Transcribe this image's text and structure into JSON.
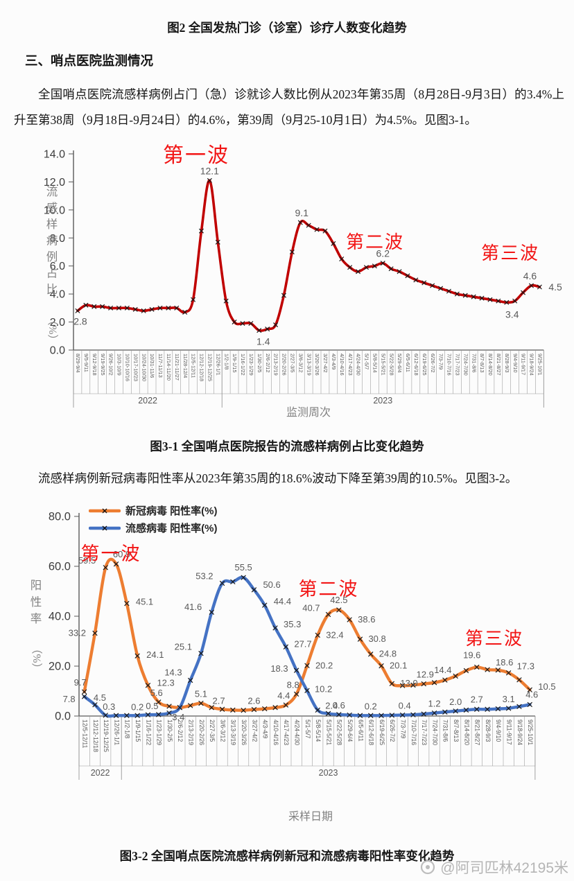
{
  "page": {
    "fig2_caption": "图2 全国发热门诊（诊室）诊疗人数变化趋势",
    "section_heading": "三、哨点医院监测情况",
    "para1": "全国哨点医院流感样病例占门（急）诊就诊人数比例从2023年第35周（8月28日-9月3日）的3.4%上升至第38周（9月18日-9月24日）的4.6%，第39周（9月25-10月1日）为4.5%。见图3-1。",
    "fig31_caption": "图3-1 全国哨点医院报告的流感样病例占比变化趋势",
    "para2": "流感样病例新冠病毒阳性率从2023年第35周的18.6%波动下降至第39周的10.5%。见图3-2。",
    "fig32_caption": "图3-2 全国哨点医院流感样病例新冠和流感病毒阳性率变化趋势",
    "watermark": "@阿司匹林42195米",
    "annotation_color": "#f21515"
  },
  "chart_data": [
    {
      "type": "line",
      "title": "",
      "ylabel": "流感样病例占比",
      "ylabel_unit": "（%）",
      "xlabel": "监测周次",
      "ylim": [
        0,
        14
      ],
      "ytick_step": 2,
      "grid": false,
      "legend_position": "none",
      "categories": [
        "8/29-9/4",
        "9/5-9/11",
        "9/12-9/18",
        "9/19-9/25",
        "9/26-10/2",
        "10/3-10/9",
        "10/10-10/16",
        "10/17-10/23",
        "10/24-10/30",
        "10/31-11/6",
        "11/7-11/13",
        "11/14-11/20",
        "11/21-11/27",
        "11/28-12/4",
        "12/5-12/11",
        "12/12-12/18",
        "12/19-12/25",
        "12/26-1/1",
        "1/2-1/8",
        "1/9-1/15",
        "1/16-1/22",
        "1/23-1/29",
        "1/30-2/5",
        "2/6-2/12",
        "2/13-2/19",
        "2/20-2/26",
        "2/27-3/5",
        "3/6-3/12",
        "3/13-3/19",
        "3/20-3/26",
        "3/27-4/2",
        "4/3-4/9",
        "4/10-4/16",
        "4/17-4/23",
        "4/24-4/30",
        "5/1-5/7",
        "5/8-5/14",
        "5/15-5/21",
        "5/22-5/28",
        "5/29-6/4",
        "6/5-6/11",
        "6/12-6/18",
        "6/19-6/25",
        "6/26-7/2",
        "7/3-7/9",
        "7/10-7/16",
        "7/17-7/23",
        "7/24-7/30",
        "7/31-8/6",
        "8/7-8/13",
        "8/14-8/20",
        "8/21-8/27",
        "8/28-9/3",
        "9/4-9/10",
        "9/11-9/17",
        "9/18-9/24",
        "9/25-10/1"
      ],
      "year_groups": [
        {
          "label": "2022",
          "count": 18
        },
        {
          "label": "2023",
          "count": 39
        }
      ],
      "series": [
        {
          "name": "流感样病例占比(%)",
          "color": "#C00000",
          "values": [
            2.8,
            3.2,
            3.1,
            3.1,
            3.0,
            3.0,
            3.0,
            2.9,
            2.8,
            2.9,
            3.0,
            3.0,
            3.0,
            2.7,
            3.6,
            8.5,
            12.1,
            7.7,
            3.5,
            2.0,
            1.9,
            1.9,
            1.4,
            1.5,
            1.8,
            3.9,
            7.0,
            9.1,
            8.9,
            8.6,
            8.5,
            7.6,
            6.5,
            5.9,
            5.6,
            5.9,
            6.0,
            6.2,
            5.8,
            5.6,
            5.3,
            5.0,
            4.8,
            4.6,
            4.4,
            4.2,
            4.0,
            3.9,
            3.8,
            3.7,
            3.6,
            3.5,
            3.4,
            3.5,
            4.1,
            4.6,
            4.5
          ],
          "point_labels": [
            {
              "i": 0,
              "t": "2.8",
              "dx": 4,
              "dy": 20
            },
            {
              "i": 16,
              "t": "12.1",
              "dx": 0,
              "dy": -9
            },
            {
              "i": 22,
              "t": "1.4",
              "dx": 6,
              "dy": 21
            },
            {
              "i": 27,
              "t": "9.1",
              "dx": 2,
              "dy": -9
            },
            {
              "i": 37,
              "t": "6.2",
              "dx": 0,
              "dy": -9
            },
            {
              "i": 52,
              "t": "3.4",
              "dx": 8,
              "dy": 22
            },
            {
              "i": 55,
              "t": "4.6",
              "dx": -2,
              "dy": -9
            },
            {
              "i": 56,
              "t": "4.5",
              "dx": 13,
              "dy": 5
            }
          ]
        }
      ],
      "annotations": [
        {
          "text": "第一波",
          "x": 283,
          "y": 34,
          "size": 30
        },
        {
          "text": "第二波",
          "x": 541,
          "y": 158,
          "size": 26
        },
        {
          "text": "第三波",
          "x": 736,
          "y": 174,
          "size": 26
        }
      ]
    },
    {
      "type": "line",
      "title": "",
      "ylabel": "阳性率",
      "ylabel_unit": "（%）",
      "xlabel": "采样日期",
      "ylim": [
        0,
        80
      ],
      "ytick_step": 20,
      "grid": false,
      "legend_position": "top-left",
      "categories": [
        "12/5-12/11",
        "12/12-12/18",
        "12/19-12/25",
        "12/26-1/1",
        "1/2-1/8",
        "1/9-1/15",
        "1/16-1/22",
        "1/23-1/29",
        "1/30-2/5",
        "2/6-2/12",
        "2/13-2/19",
        "2/20-2/26",
        "2/27-3/5",
        "3/6-3/12",
        "3/13-3/19",
        "3/20-3/26",
        "3/27-4/2",
        "4/3-4/9",
        "4/10-4/16",
        "4/17-4/23",
        "4/24-4/30",
        "5/1-5/7",
        "5/8-5/14",
        "5/15-5/21",
        "5/22-5/28",
        "5/29-6/4",
        "6/5-6/11",
        "6/12-6/18",
        "6/19-6/25",
        "6/26-7/2",
        "7/3-7/9",
        "7/10-7/16",
        "7/17-7/23",
        "7/24-7/30",
        "7/31-8/6",
        "8/7-8/13",
        "8/14-8/20",
        "8/21-8/27",
        "8/28-9/3",
        "9/4-9/10",
        "9/11-9/17",
        "9/18-9/24",
        "9/25-10/1"
      ],
      "year_groups": [
        {
          "label": "2022",
          "count": 4
        },
        {
          "label": "2023",
          "count": 39
        }
      ],
      "series": [
        {
          "name": "新冠病毒 阳性率(%)",
          "color": "#ED7D31",
          "values": [
            9.7,
            33.2,
            59.5,
            60.9,
            45.1,
            24.1,
            12.3,
            5.6,
            3.9,
            3.4,
            4.2,
            5.1,
            3.4,
            2.7,
            2.4,
            2.3,
            2.6,
            2.9,
            3.4,
            4.4,
            8.8,
            20.2,
            32.4,
            40.7,
            42.5,
            38.6,
            30.8,
            24.8,
            20.1,
            13.0,
            12.2,
            12.4,
            12.9,
            13.4,
            14.4,
            16.0,
            18.2,
            19.6,
            18.6,
            18.4,
            17.3,
            14.5,
            10.5
          ],
          "point_labels": [
            {
              "i": 0,
              "t": "9.7",
              "dx": -6,
              "dy": -9
            },
            {
              "i": 1,
              "t": "33.2",
              "dx": -13,
              "dy": 4
            },
            {
              "i": 2,
              "t": "59.5",
              "dx": -14,
              "dy": -6
            },
            {
              "i": 3,
              "t": "60.9",
              "dx": 8,
              "dy": -10
            },
            {
              "i": 4,
              "t": "45.1",
              "dx": 13,
              "dy": 2
            },
            {
              "i": 5,
              "t": "24.1",
              "dx": 13,
              "dy": 3
            },
            {
              "i": 6,
              "t": "12.3",
              "dx": 13,
              "dy": 1
            },
            {
              "i": 7,
              "t": "5.6",
              "dx": -3,
              "dy": -9
            },
            {
              "i": 9,
              "t": "3.4",
              "dx": -2,
              "dy": 18
            },
            {
              "i": 11,
              "t": "5.1",
              "dx": 0,
              "dy": -9
            },
            {
              "i": 13,
              "t": "2.7",
              "dx": -5,
              "dy": -8
            },
            {
              "i": 16,
              "t": "2.6",
              "dx": 0,
              "dy": -8
            },
            {
              "i": 19,
              "t": "4.4",
              "dx": -3,
              "dy": -9
            },
            {
              "i": 20,
              "t": "8.8",
              "dx": -5,
              "dy": -9
            },
            {
              "i": 21,
              "t": "20.2",
              "dx": 12,
              "dy": 4
            },
            {
              "i": 22,
              "t": "32.4",
              "dx": 12,
              "dy": 4
            },
            {
              "i": 23,
              "t": "40.7",
              "dx": -12,
              "dy": -5
            },
            {
              "i": 24,
              "t": "42.5",
              "dx": 0,
              "dy": -10
            },
            {
              "i": 25,
              "t": "38.6",
              "dx": 12,
              "dy": 4
            },
            {
              "i": 26,
              "t": "30.8",
              "dx": 12,
              "dy": 4
            },
            {
              "i": 27,
              "t": "24.8",
              "dx": 12,
              "dy": 4
            },
            {
              "i": 28,
              "t": "20.1",
              "dx": 12,
              "dy": 4
            },
            {
              "i": 29,
              "t": "13.0",
              "dx": 12,
              "dy": 4
            },
            {
              "i": 32,
              "t": "12.9",
              "dx": 2,
              "dy": -9
            },
            {
              "i": 34,
              "t": "14.4",
              "dx": -3,
              "dy": -10
            },
            {
              "i": 37,
              "t": "19.6",
              "dx": -7,
              "dy": -13
            },
            {
              "i": 38,
              "t": "18.6",
              "dx": 12,
              "dy": -6
            },
            {
              "i": 40,
              "t": "17.3",
              "dx": 12,
              "dy": -5
            },
            {
              "i": 42,
              "t": "10.5",
              "dx": 12,
              "dy": 0
            }
          ]
        },
        {
          "name": "流感病毒 阳性率(%)",
          "color": "#4472C4",
          "values": [
            7.8,
            4.5,
            0.3,
            0.2,
            0.2,
            0.2,
            0.5,
            0.6,
            1.2,
            3.4,
            14.3,
            25.1,
            41.6,
            53.2,
            53.8,
            55.5,
            50.6,
            44.4,
            35.3,
            27.7,
            18.3,
            10.2,
            2.4,
            1.0,
            0.6,
            0.4,
            0.2,
            0.2,
            0.2,
            0.3,
            0.4,
            0.5,
            0.8,
            1.2,
            1.6,
            2.0,
            2.4,
            2.7,
            2.7,
            2.9,
            3.1,
            3.8,
            4.6
          ],
          "point_labels": [
            {
              "i": 0,
              "t": "7.8",
              "dx": -13,
              "dy": 8
            },
            {
              "i": 1,
              "t": "4.5",
              "dx": 7,
              "dy": -6
            },
            {
              "i": 2,
              "t": "0.3",
              "dx": 5,
              "dy": -8
            },
            {
              "i": 5,
              "t": "0.2",
              "dx": 0,
              "dy": -8
            },
            {
              "i": 6,
              "t": "0.5",
              "dx": 6,
              "dy": -8
            },
            {
              "i": 10,
              "t": "14.3",
              "dx": -12,
              "dy": -7
            },
            {
              "i": 11,
              "t": "25.1",
              "dx": -13,
              "dy": -5
            },
            {
              "i": 12,
              "t": "41.6",
              "dx": -14,
              "dy": -3
            },
            {
              "i": 13,
              "t": "53.2",
              "dx": -13,
              "dy": -6
            },
            {
              "i": 15,
              "t": "55.5",
              "dx": 0,
              "dy": -10
            },
            {
              "i": 16,
              "t": "50.6",
              "dx": 13,
              "dy": -3
            },
            {
              "i": 17,
              "t": "44.4",
              "dx": 13,
              "dy": -1
            },
            {
              "i": 18,
              "t": "35.3",
              "dx": 12,
              "dy": -1
            },
            {
              "i": 19,
              "t": "27.7",
              "dx": 12,
              "dy": 0
            },
            {
              "i": 20,
              "t": "18.3",
              "dx": -12,
              "dy": 2
            },
            {
              "i": 21,
              "t": "10.2",
              "dx": 11,
              "dy": 2
            },
            {
              "i": 22,
              "t": "2.4",
              "dx": 11,
              "dy": -2
            },
            {
              "i": 24,
              "t": "0.6",
              "dx": 0,
              "dy": -9
            },
            {
              "i": 27,
              "t": "0.2",
              "dx": 0,
              "dy": -9
            },
            {
              "i": 30,
              "t": "0.4",
              "dx": 3,
              "dy": -9
            },
            {
              "i": 33,
              "t": "1.2",
              "dx": 0,
              "dy": -9
            },
            {
              "i": 35,
              "t": "2.0",
              "dx": 0,
              "dy": -9
            },
            {
              "i": 37,
              "t": "2.7",
              "dx": 0,
              "dy": -10
            },
            {
              "i": 40,
              "t": "3.1",
              "dx": 0,
              "dy": -9
            },
            {
              "i": 42,
              "t": "4.6",
              "dx": 3,
              "dy": -10
            }
          ]
        }
      ],
      "annotations": [
        {
          "text": "第一波",
          "x": 160,
          "y": 88,
          "size": 27
        },
        {
          "text": "第二波",
          "x": 474,
          "y": 139,
          "size": 27
        },
        {
          "text": "第三波",
          "x": 713,
          "y": 210,
          "size": 26
        }
      ]
    }
  ]
}
